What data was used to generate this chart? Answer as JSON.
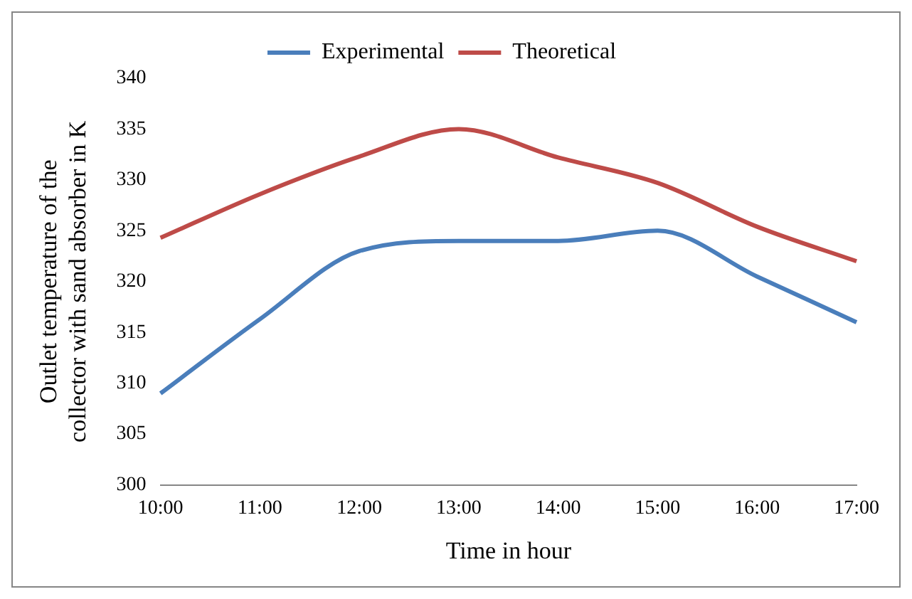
{
  "chart_data": {
    "type": "line",
    "xlabel": "Time in hour",
    "ylabel": "Outlet temperature of the collector with sand absorber in K",
    "categories": [
      "10:00",
      "11:00",
      "12:00",
      "13:00",
      "14:00",
      "15:00",
      "16:00",
      "17:00"
    ],
    "series": [
      {
        "name": "Experimental",
        "color": "#4a7ebb",
        "values": [
          309,
          316.3,
          323,
          324,
          324,
          325,
          320.5,
          316
        ]
      },
      {
        "name": "Theoretical",
        "color": "#be4b48",
        "values": [
          324.3,
          328.6,
          332.3,
          335,
          332.2,
          329.7,
          325.4,
          322
        ]
      }
    ],
    "ylim": [
      300,
      340
    ],
    "yticks": [
      300,
      305,
      310,
      315,
      320,
      325,
      330,
      335,
      340
    ],
    "grid": false,
    "legend": "top",
    "marker": "none",
    "line_style": "solid"
  }
}
